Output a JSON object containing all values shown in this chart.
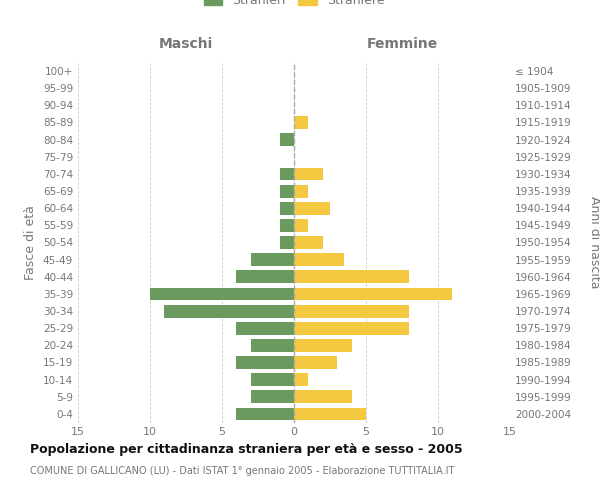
{
  "age_groups": [
    "0-4",
    "5-9",
    "10-14",
    "15-19",
    "20-24",
    "25-29",
    "30-34",
    "35-39",
    "40-44",
    "45-49",
    "50-54",
    "55-59",
    "60-64",
    "65-69",
    "70-74",
    "75-79",
    "80-84",
    "85-89",
    "90-94",
    "95-99",
    "100+"
  ],
  "birth_years": [
    "2000-2004",
    "1995-1999",
    "1990-1994",
    "1985-1989",
    "1980-1984",
    "1975-1979",
    "1970-1974",
    "1965-1969",
    "1960-1964",
    "1955-1959",
    "1950-1954",
    "1945-1949",
    "1940-1944",
    "1935-1939",
    "1930-1934",
    "1925-1929",
    "1920-1924",
    "1915-1919",
    "1910-1914",
    "1905-1909",
    "≤ 1904"
  ],
  "maschi": [
    4,
    3,
    3,
    4,
    3,
    4,
    9,
    10,
    4,
    3,
    1,
    1,
    1,
    1,
    1,
    0,
    1,
    0,
    0,
    0,
    0
  ],
  "femmine": [
    5,
    4,
    1,
    3,
    4,
    8,
    8,
    11,
    8,
    3.5,
    2,
    1,
    2.5,
    1,
    2,
    0,
    0,
    1,
    0,
    0,
    0
  ],
  "color_maschi": "#6b9a5e",
  "color_femmine": "#f5c842",
  "title": "Popolazione per cittadinanza straniera per età e sesso - 2005",
  "subtitle": "COMUNE DI GALLICANO (LU) - Dati ISTAT 1° gennaio 2005 - Elaborazione TUTTITALIA.IT",
  "ylabel_left": "Fasce di età",
  "ylabel_right": "Anni di nascita",
  "header_maschi": "Maschi",
  "header_femmine": "Femmine",
  "xlim": 15,
  "xtick_vals": [
    -15,
    -10,
    -5,
    0,
    5,
    10,
    15
  ],
  "xtick_labels": [
    "15",
    "10",
    "5",
    "0",
    "5",
    "10",
    "15"
  ],
  "background_color": "#ffffff",
  "grid_color": "#cccccc",
  "text_color": "#777777",
  "title_color": "#111111",
  "center_line_color": "#aaaaaa"
}
